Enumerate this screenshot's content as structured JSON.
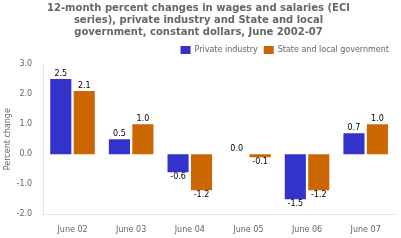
{
  "chart_data": {
    "type": "bar",
    "title": "12-month percent changes in wages and salaries (ECI\nseries), private industry and State and local\ngovernment, constant dollars, June 2002-07",
    "categories": [
      "June 02",
      "June 03",
      "June 04",
      "June 05",
      "June 06",
      "June 07"
    ],
    "series": [
      {
        "name": "Private industry",
        "color": "#3333cc",
        "values": [
          2.5,
          0.5,
          -0.6,
          0.0,
          -1.5,
          0.7
        ],
        "value_labels": [
          "2.5",
          "0.5",
          "-0.6",
          "0.0",
          "-1.5",
          "0.7"
        ]
      },
      {
        "name": "State and local government",
        "color": "#cc6600",
        "values": [
          2.1,
          1.0,
          -1.2,
          -0.1,
          -1.2,
          1.0
        ],
        "value_labels": [
          "2.1",
          "1.0",
          "-1.2",
          "-0.1",
          "-1.2",
          "1.0"
        ]
      }
    ],
    "ylabel": "Percent change",
    "ylim": [
      -2.0,
      3.0
    ],
    "yticks": [
      {
        "value": -2.0,
        "label": "-2.0"
      },
      {
        "value": -1.0,
        "label": "-1.0"
      },
      {
        "value": 0.0,
        "label": "0.0"
      },
      {
        "value": 1.0,
        "label": "1.0"
      },
      {
        "value": 2.0,
        "label": "2.0"
      },
      {
        "value": 3.0,
        "label": "3.0"
      }
    ],
    "grid": false,
    "legend": "upper right",
    "data_labels": true
  }
}
